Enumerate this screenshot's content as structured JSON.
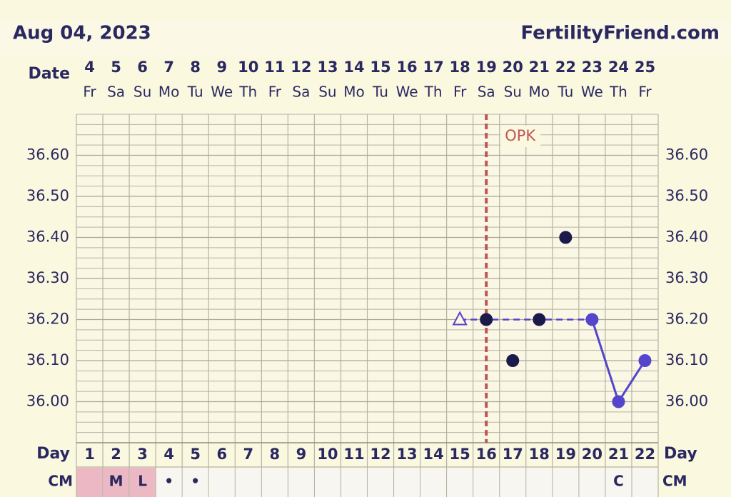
{
  "chart_data": {
    "type": "line",
    "title": "Aug 04, 2023",
    "site": "FertilityFriend.com",
    "date_label": "Date",
    "day_label": "Day",
    "cm_label": "CM",
    "dates": [
      "4",
      "5",
      "6",
      "7",
      "8",
      "9",
      "10",
      "11",
      "12",
      "13",
      "14",
      "15",
      "16",
      "17",
      "18",
      "19",
      "20",
      "21",
      "22",
      "23",
      "24",
      "25"
    ],
    "weekdays": [
      "Fr",
      "Sa",
      "Su",
      "Mo",
      "Tu",
      "We",
      "Th",
      "Fr",
      "Sa",
      "Su",
      "Mo",
      "Tu",
      "We",
      "Th",
      "Fr",
      "Sa",
      "Su",
      "Mo",
      "Tu",
      "We",
      "Th",
      "Fr"
    ],
    "categories": [
      "1",
      "2",
      "3",
      "4",
      "5",
      "6",
      "7",
      "8",
      "9",
      "10",
      "11",
      "12",
      "13",
      "14",
      "15",
      "16",
      "17",
      "18",
      "19",
      "20",
      "21",
      "22"
    ],
    "ylim": [
      35.9,
      36.7
    ],
    "yticks": [
      {
        "value": 36.0,
        "label": "36.00"
      },
      {
        "value": 36.1,
        "label": "36.10"
      },
      {
        "value": 36.2,
        "label": "36.20"
      },
      {
        "value": 36.3,
        "label": "36.30"
      },
      {
        "value": 36.4,
        "label": "36.40"
      },
      {
        "value": 36.5,
        "label": "36.50"
      },
      {
        "value": 36.6,
        "label": "36.60"
      }
    ],
    "grid": true,
    "series": [
      {
        "color": "#1c1a4a",
        "marker": "dot",
        "line": false,
        "values": [
          null,
          null,
          null,
          null,
          null,
          null,
          null,
          null,
          null,
          null,
          null,
          null,
          null,
          null,
          null,
          36.2,
          36.1,
          36.2,
          36.4,
          null,
          null,
          null
        ]
      },
      {
        "color": "#5544cc",
        "marker": "dot",
        "line": true,
        "values": [
          null,
          null,
          null,
          null,
          null,
          null,
          null,
          null,
          null,
          null,
          null,
          null,
          null,
          null,
          null,
          null,
          null,
          null,
          null,
          36.2,
          36.0,
          36.1
        ]
      },
      {
        "color": "#5544cc",
        "marker": "open-triangle",
        "line": false,
        "values": [
          null,
          null,
          null,
          null,
          null,
          null,
          null,
          null,
          null,
          null,
          null,
          null,
          null,
          null,
          36.2,
          null,
          null,
          null,
          null,
          null,
          null,
          null
        ]
      }
    ],
    "coverline": {
      "value": 36.2,
      "from": 15,
      "to": 20,
      "color": "#5544cc"
    },
    "opk": {
      "text": "OPK",
      "day": 16,
      "color": "#c05555"
    },
    "cm": [
      null,
      "M",
      "L",
      "•",
      "•",
      null,
      null,
      null,
      null,
      null,
      null,
      null,
      null,
      null,
      null,
      null,
      null,
      null,
      null,
      null,
      "C",
      null
    ],
    "cm_shaded_days": [
      1,
      2,
      3
    ]
  }
}
